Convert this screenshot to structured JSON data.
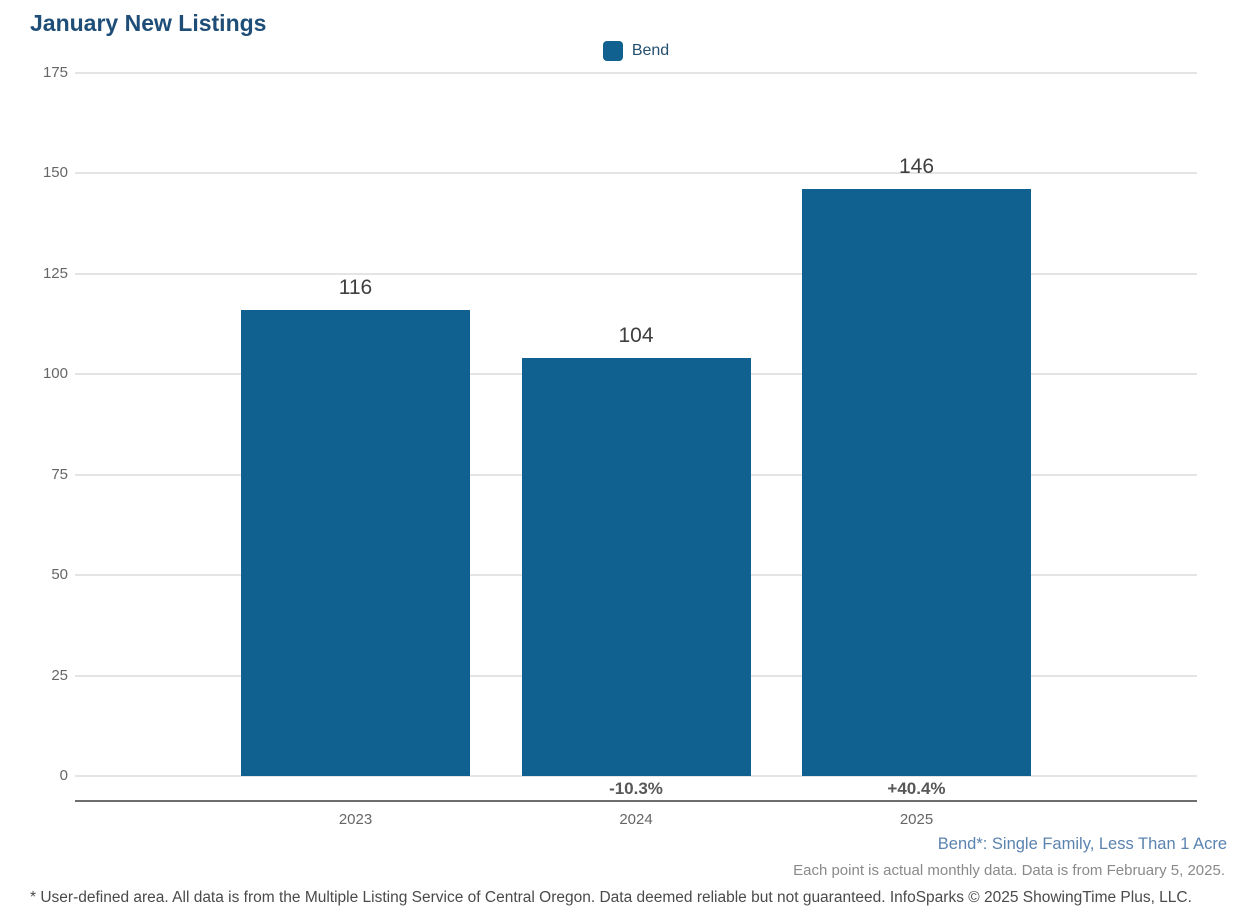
{
  "chart_data": {
    "type": "bar",
    "title": "January New Listings",
    "categories": [
      "2023",
      "2024",
      "2025"
    ],
    "series": [
      {
        "name": "Bend",
        "values": [
          116,
          104,
          146
        ]
      }
    ],
    "value_labels": [
      "116",
      "104",
      "146"
    ],
    "pct_change_labels": [
      "",
      "-10.3%",
      "+40.4%"
    ],
    "ylim": [
      0,
      175
    ],
    "yticks": [
      175,
      150,
      125,
      100,
      75,
      50,
      25,
      0
    ],
    "grid": "horizontal-on",
    "legend_position": "top-center",
    "xlabel": "",
    "ylabel": ""
  },
  "footnotes": {
    "series_note": "Bend*: Single Family, Less Than 1 Acre",
    "data_note": "Each point is actual monthly data. Data is from February 5, 2025.",
    "disclaimer": "* User-defined area. All data is from the Multiple Listing Service of Central Oregon. Data deemed reliable but not guaranteed. InfoSparks © 2025 ShowingTime Plus, LLC."
  },
  "colors": {
    "bar": "#10618f",
    "title": "#1e4e78",
    "legend_text": "#24506f",
    "axis_tick_label": "#666666",
    "gridline": "#e4e4e4",
    "axis_line": "#6e6e6e",
    "value_label": "#3f3f3f",
    "pct_label": "#575757",
    "series_note": "#5b83af",
    "data_note": "#8a8a8a",
    "disclaimer": "#4a4a4a"
  }
}
